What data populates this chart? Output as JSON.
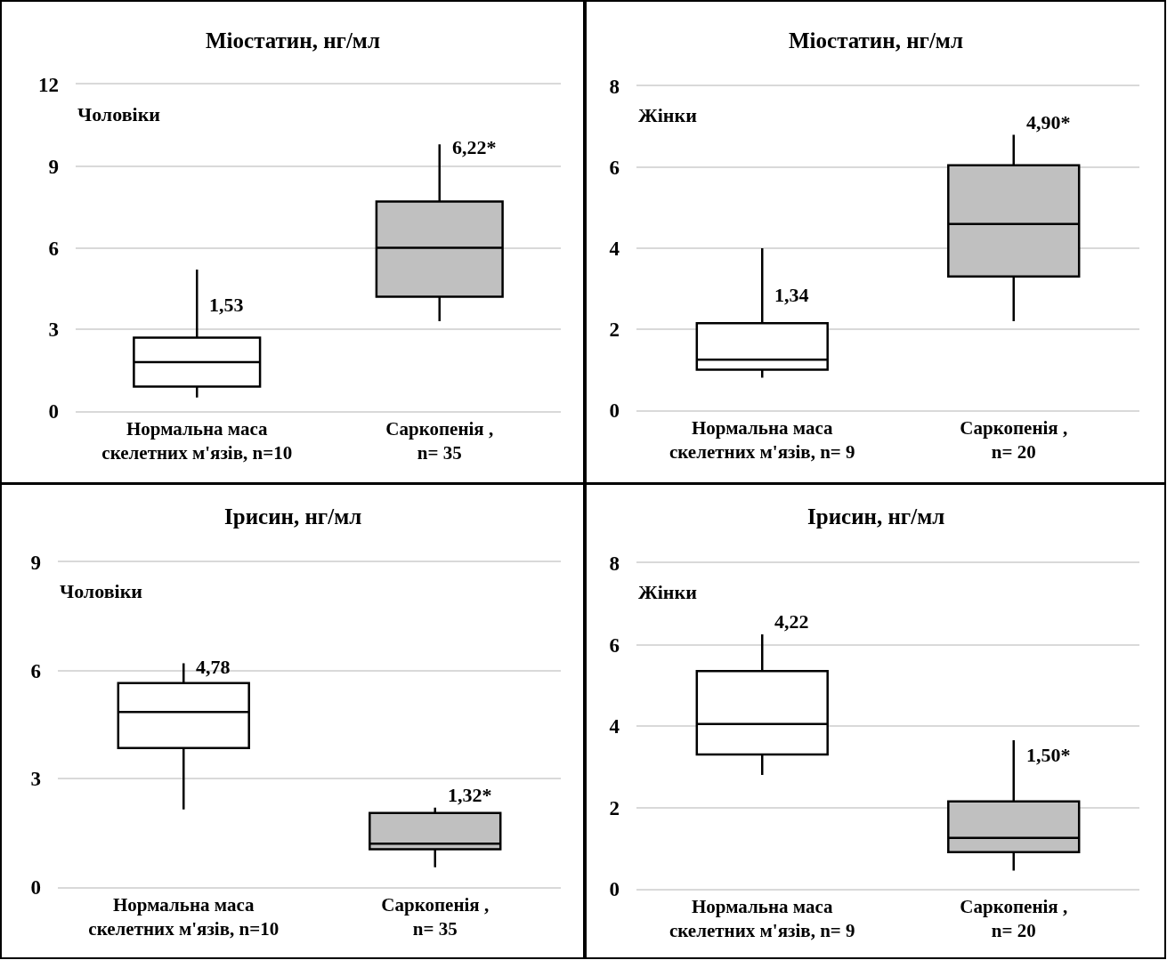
{
  "chart_data": [
    {
      "type": "box",
      "title": "Міостатин, нг/мл",
      "subtitle": "Чоловіки",
      "categories": [
        "Нормальна маса\nскелетних м'язів, n=10",
        "Саркопенія ,\nn= 35"
      ],
      "boxes": [
        {
          "low": 0.5,
          "q1": 0.9,
          "median": 1.8,
          "q3": 2.7,
          "high": 5.2
        },
        {
          "low": 3.3,
          "q1": 4.2,
          "median": 6.0,
          "q3": 7.7,
          "high": 9.8
        }
      ],
      "colors": [
        "#ffffff",
        "#c0c0c0"
      ],
      "ylim": [
        0,
        12
      ],
      "yticks": [
        0,
        3,
        6,
        9,
        12
      ],
      "grid": "y",
      "annotations": [
        {
          "text": "1,53",
          "x": "Нормальна маса\nскелетних м'язів, n=10",
          "y": 3.9
        },
        {
          "text": "6,22*",
          "x": "Саркопенія ,\nn= 35",
          "y": 9.7
        }
      ]
    },
    {
      "type": "box",
      "title": "Міостатин, нг/мл",
      "subtitle": "Жінки",
      "categories": [
        "Нормальна маса\nскелетних м'язів, n= 9",
        "Саркопенія ,\nn= 20"
      ],
      "boxes": [
        {
          "low": 0.8,
          "q1": 1.0,
          "median": 1.25,
          "q3": 2.15,
          "high": 4.0
        },
        {
          "low": 2.2,
          "q1": 3.3,
          "median": 4.6,
          "q3": 6.05,
          "high": 6.8
        }
      ],
      "colors": [
        "#ffffff",
        "#c0c0c0"
      ],
      "ylim": [
        0,
        8
      ],
      "yticks": [
        0,
        2,
        4,
        6,
        8
      ],
      "grid": "y",
      "annotations": [
        {
          "text": "1,34",
          "x": "Нормальна маса\nскелетних м'язів, n= 9",
          "y": 2.85
        },
        {
          "text": "4,90*",
          "x": "Саркопенія ,\nn= 20",
          "y": 6.8
        }
      ]
    },
    {
      "type": "box",
      "title": "Ірисин, нг/мл",
      "subtitle": "Чоловіки",
      "categories": [
        "Нормальна маса\nскелетних м'язів, n=10",
        "Саркопенія ,\nn= 35"
      ],
      "boxes": [
        {
          "low": 2.15,
          "q1": 3.85,
          "median": 4.85,
          "q3": 5.65,
          "high": 6.2
        },
        {
          "low": 0.55,
          "q1": 1.05,
          "median": 1.2,
          "q3": 2.05,
          "high": 2.2
        }
      ],
      "colors": [
        "#ffffff",
        "#c0c0c0"
      ],
      "ylim": [
        0,
        9
      ],
      "yticks": [
        0,
        3,
        6,
        9
      ],
      "grid": "y",
      "annotations": [
        {
          "text": "4,78",
          "x": "Нормальна маса\nскелетних м'язів, n=10",
          "y": 6.1
        },
        {
          "text": "1,32*",
          "x": "Саркопенія ,\nn= 35",
          "y": 2.2
        }
      ]
    },
    {
      "type": "box",
      "title": "Ірисин, нг/мл",
      "subtitle": "Жінки",
      "categories": [
        "Нормальна маса\nскелетних м'язів, n= 9",
        "Саркопенія ,\nn= 20"
      ],
      "boxes": [
        {
          "low": 2.8,
          "q1": 3.3,
          "median": 4.05,
          "q3": 5.35,
          "high": 6.25
        },
        {
          "low": 0.45,
          "q1": 0.9,
          "median": 1.25,
          "q3": 2.15,
          "high": 3.65
        }
      ],
      "colors": [
        "#ffffff",
        "#c0c0c0"
      ],
      "ylim": [
        0,
        8
      ],
      "yticks": [
        0,
        2,
        4,
        6,
        8
      ],
      "grid": "y",
      "annotations": [
        {
          "text": "4,22",
          "x": "Нормальна маса\nскелетних м'язів, n= 9",
          "y": 6.25
        },
        {
          "text": "1,50*",
          "x": "Саркопенія ,\nn= 20",
          "y": 3.3
        }
      ]
    }
  ]
}
